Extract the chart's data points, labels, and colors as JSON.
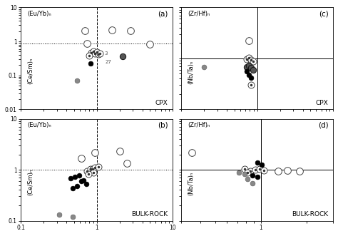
{
  "panel_a": {
    "label": "(a)",
    "top_ylabel": "(Eu/Yb)ₙ",
    "bottom_ylabel": "(Ce/Sm)ₙ",
    "text": "CPX",
    "xlim": [
      0.1,
      10
    ],
    "ylim": [
      0.01,
      10
    ],
    "vline": 1.0,
    "hline": 0.85,
    "hline_style": "dotted",
    "vline_style": "dashed",
    "data_open_large": [
      [
        0.75,
        0.85
      ],
      [
        1.6,
        2.2
      ],
      [
        2.8,
        2.1
      ],
      [
        5.0,
        0.83
      ],
      [
        0.7,
        2.1
      ]
    ],
    "data_circled_dot": [
      [
        0.85,
        0.47
      ],
      [
        0.9,
        0.52
      ],
      [
        0.95,
        0.45
      ],
      [
        1.0,
        0.48
      ],
      [
        1.05,
        0.42
      ],
      [
        0.8,
        0.38
      ],
      [
        1.1,
        0.44
      ]
    ],
    "data_filled_black": [
      [
        0.82,
        0.22
      ]
    ],
    "data_filled_gray": [
      [
        0.55,
        0.07
      ]
    ],
    "data_half_dark": [
      [
        2.2,
        0.37
      ]
    ],
    "annotations": [
      [
        1.18,
        0.4,
        "3"
      ],
      [
        1.22,
        0.23,
        "27"
      ]
    ]
  },
  "panel_b": {
    "label": "(b)",
    "top_ylabel": "(Eu/Yb)ₙ",
    "bottom_ylabel": "(Ce/Sm)ₙ",
    "text": "BULK-ROCK",
    "xlim": [
      0.1,
      10
    ],
    "ylim": [
      0.1,
      10
    ],
    "vline": 1.0,
    "hline": 1.0,
    "hline_style": "dotted",
    "vline_style": "dashed",
    "data_open_large": [
      [
        0.62,
        1.7
      ],
      [
        0.95,
        2.2
      ],
      [
        2.0,
        2.3
      ],
      [
        2.5,
        1.35
      ]
    ],
    "data_circled_dot": [
      [
        0.75,
        0.95
      ],
      [
        0.82,
        1.05
      ],
      [
        0.88,
        1.02
      ],
      [
        0.95,
        1.1
      ],
      [
        1.05,
        1.15
      ],
      [
        0.9,
        0.88
      ],
      [
        0.78,
        0.82
      ]
    ],
    "data_filled_black": [
      [
        0.45,
        0.68
      ],
      [
        0.52,
        0.72
      ],
      [
        0.58,
        0.78
      ],
      [
        0.62,
        0.6
      ],
      [
        0.67,
        0.62
      ],
      [
        0.72,
        0.52
      ],
      [
        0.55,
        0.48
      ],
      [
        0.48,
        0.44
      ]
    ],
    "data_filled_gray": [
      [
        0.32,
        0.13
      ],
      [
        0.48,
        0.12
      ]
    ]
  },
  "panel_c": {
    "label": "(c)",
    "top_ylabel": "(Zr/Hf)ₙ",
    "bottom_ylabel": "(Nb/Ta)ₙ",
    "text": "CPX",
    "xlim": [
      0.1,
      10
    ],
    "ylim": [
      0.1,
      10
    ],
    "vline": 1.0,
    "hline": 1.0,
    "hline_style": "solid",
    "vline_style": "solid",
    "data_open_large": [
      [
        0.78,
        2.2
      ]
    ],
    "data_circled_dot": [
      [
        0.72,
        0.98
      ],
      [
        0.78,
        1.02
      ],
      [
        0.83,
        0.95
      ],
      [
        0.88,
        0.88
      ],
      [
        0.82,
        0.3
      ]
    ],
    "data_filled_black": [
      [
        0.72,
        0.55
      ],
      [
        0.78,
        0.48
      ],
      [
        0.82,
        0.42
      ]
    ],
    "data_filled_gray": [
      [
        0.2,
        0.68
      ]
    ],
    "data_half_dark": [
      [
        0.72,
        0.68
      ],
      [
        0.78,
        0.72
      ],
      [
        0.83,
        0.65
      ],
      [
        0.88,
        0.6
      ]
    ]
  },
  "panel_d": {
    "label": "(d)",
    "top_ylabel": "(Zr/Hf)ₙ",
    "bottom_ylabel": "(Nb/Ta)ₙ",
    "text": "BULK-ROCK",
    "xlim": [
      0.3,
      3
    ],
    "ylim": [
      0.1,
      10
    ],
    "xlim_ticks": [
      0.3,
      1,
      3
    ],
    "vline": 1.0,
    "hline": 1.0,
    "hline_style": "solid",
    "vline_style": "solid",
    "data_open_large": [
      [
        1.3,
        0.95
      ],
      [
        1.5,
        0.98
      ],
      [
        1.8,
        0.95
      ],
      [
        0.35,
        2.2
      ]
    ],
    "data_circled_dot": [
      [
        0.78,
        1.02
      ],
      [
        0.85,
        0.95
      ],
      [
        0.92,
        1.0
      ],
      [
        0.98,
        1.05
      ],
      [
        1.05,
        0.98
      ],
      [
        0.82,
        0.88
      ]
    ],
    "data_filled_black": [
      [
        0.95,
        1.4
      ],
      [
        1.02,
        1.25
      ],
      [
        0.88,
        0.78
      ],
      [
        0.95,
        0.72
      ]
    ],
    "data_filled_gray": [
      [
        0.72,
        0.88
      ],
      [
        0.78,
        0.82
      ],
      [
        0.82,
        0.65
      ],
      [
        0.88,
        0.55
      ]
    ]
  },
  "marker_size": 5,
  "linewidth": 0.7,
  "bg_color": "#ffffff"
}
